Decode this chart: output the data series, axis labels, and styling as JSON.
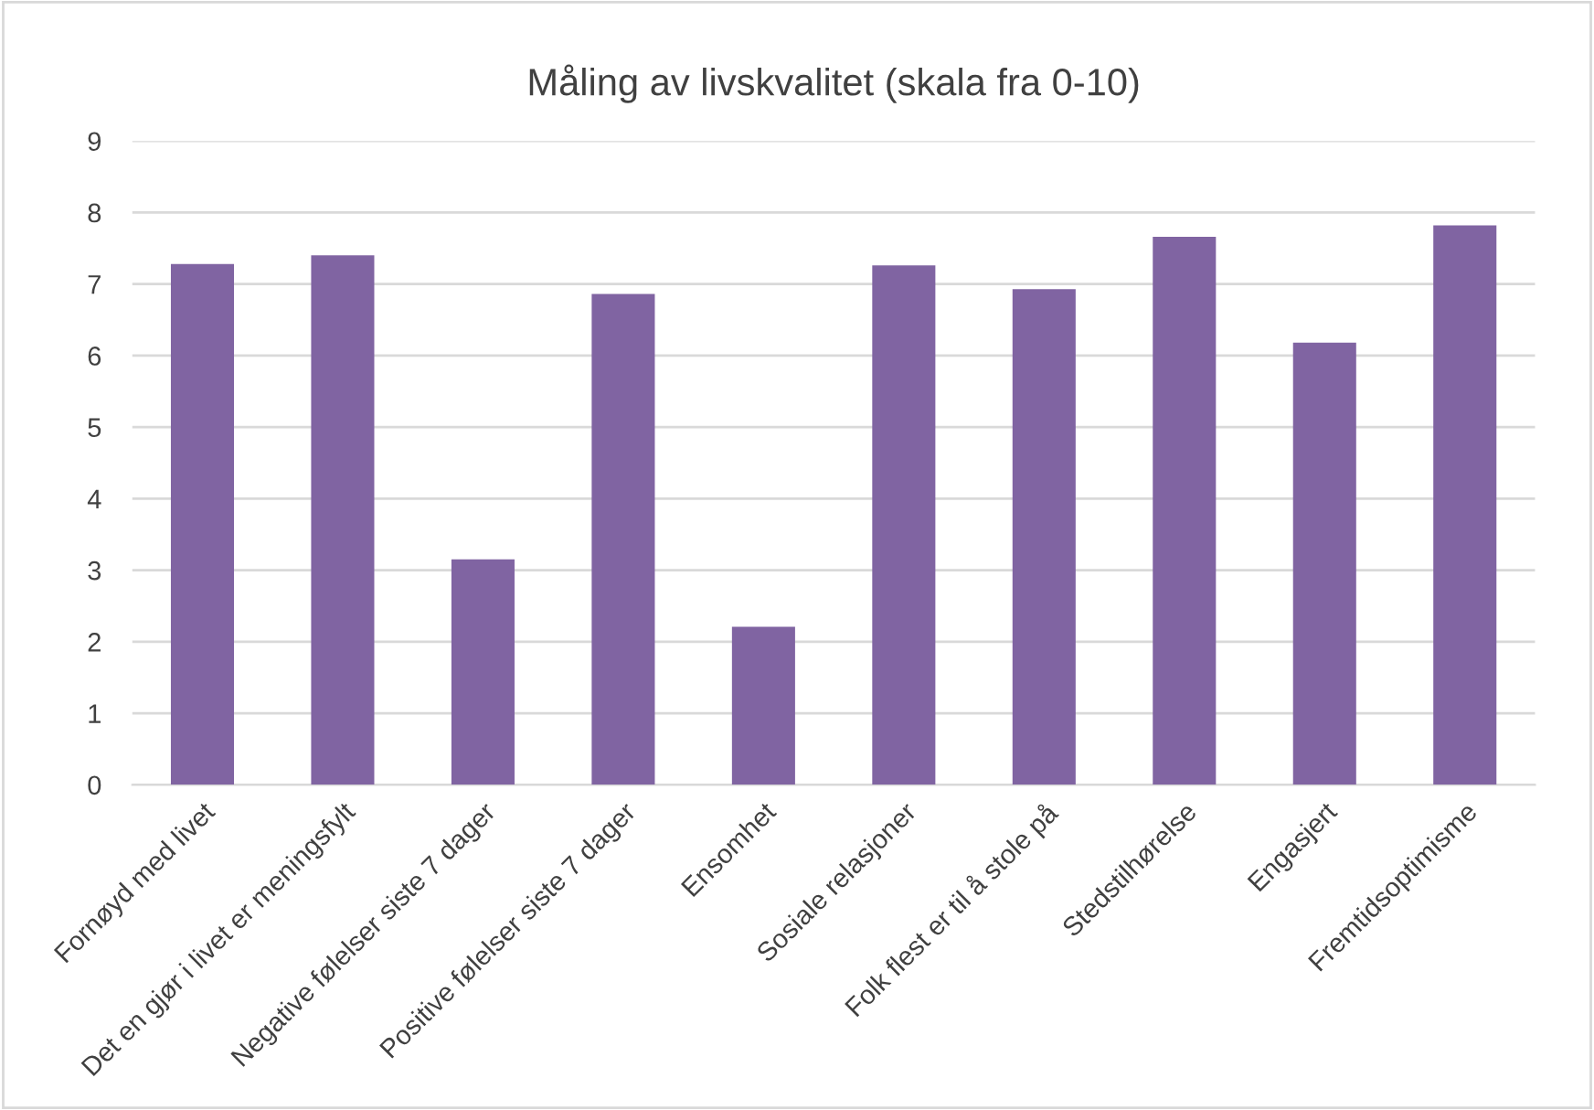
{
  "chart_data": {
    "type": "bar",
    "title": "Måling av livskvalitet (skala fra 0-10)",
    "categories": [
      "Fornøyd med livet",
      "Det en gjør i livet er meningsfylt",
      "Negative følelser siste 7 dager",
      "Positive følelser siste 7 dager",
      "Ensomhet",
      "Sosiale relasjoner",
      "Folk flest er til å stole på",
      "Stedstilhørelse",
      "Engasjert",
      "Fremtidsoptimisme"
    ],
    "values": [
      7.28,
      7.4,
      3.15,
      6.86,
      2.21,
      7.26,
      6.93,
      7.66,
      6.18,
      7.82
    ],
    "color": "#8064a2",
    "ylim": [
      0,
      9
    ],
    "yticks": [
      0,
      1,
      2,
      3,
      4,
      5,
      6,
      7,
      8,
      9
    ],
    "grid": "y",
    "legend": false
  }
}
